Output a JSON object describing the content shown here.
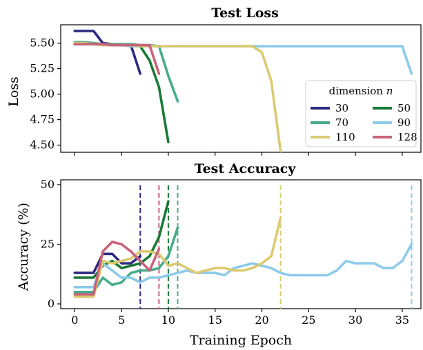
{
  "colors": {
    "30": "#2e2a80",
    "50": "#187a35",
    "70": "#48ab8c",
    "90": "#8ccbea",
    "110": "#dcca72",
    "128": "#c9627a"
  },
  "chart_data": [
    {
      "type": "line",
      "title": "Test Loss",
      "xlabel": "",
      "ylabel": "Loss",
      "xlim": [
        -1.5,
        37
      ],
      "ylim": [
        4.43,
        5.68
      ],
      "xticks": [
        0,
        5,
        10,
        15,
        20,
        25,
        30,
        35
      ],
      "yticks": [
        4.5,
        4.75,
        5.0,
        5.25,
        5.5
      ],
      "ytick_labels": [
        "4.50",
        "4.75",
        "5.00",
        "5.25",
        "5.50"
      ],
      "show_xtick_labels": false,
      "legend": {
        "title_prefix": "dimension ",
        "title_var": "n",
        "placement": "lower-right",
        "entries": [
          "30",
          "50",
          "70",
          "90",
          "110",
          "128"
        ]
      },
      "series": [
        {
          "name": "30",
          "x": [
            0,
            1,
            2,
            3,
            4,
            5,
            6,
            7
          ],
          "y": [
            5.62,
            5.62,
            5.62,
            5.5,
            5.49,
            5.49,
            5.48,
            5.2
          ]
        },
        {
          "name": "50",
          "x": [
            0,
            1,
            2,
            3,
            4,
            5,
            6,
            7,
            8,
            9,
            10
          ],
          "y": [
            5.49,
            5.49,
            5.49,
            5.49,
            5.49,
            5.48,
            5.48,
            5.47,
            5.33,
            5.07,
            4.53
          ]
        },
        {
          "name": "70",
          "x": [
            0,
            1,
            2,
            3,
            4,
            5,
            6,
            7,
            8,
            9,
            10,
            11
          ],
          "y": [
            5.51,
            5.51,
            5.5,
            5.49,
            5.49,
            5.49,
            5.49,
            5.48,
            5.48,
            5.47,
            5.18,
            4.93
          ]
        },
        {
          "name": "90",
          "x": [
            0,
            1,
            2,
            3,
            4,
            5,
            6,
            7,
            8,
            9,
            10,
            11,
            12,
            13,
            14,
            15,
            16,
            17,
            18,
            19,
            20,
            21,
            22,
            23,
            24,
            25,
            26,
            27,
            28,
            29,
            30,
            31,
            32,
            33,
            34,
            35,
            36
          ],
          "y": [
            5.49,
            5.49,
            5.49,
            5.48,
            5.48,
            5.48,
            5.47,
            5.47,
            5.47,
            5.47,
            5.47,
            5.47,
            5.47,
            5.47,
            5.47,
            5.47,
            5.47,
            5.47,
            5.47,
            5.47,
            5.47,
            5.47,
            5.47,
            5.47,
            5.47,
            5.47,
            5.47,
            5.47,
            5.47,
            5.47,
            5.47,
            5.47,
            5.47,
            5.47,
            5.47,
            5.47,
            5.2
          ]
        },
        {
          "name": "110",
          "x": [
            0,
            1,
            2,
            3,
            4,
            5,
            6,
            7,
            8,
            9,
            10,
            11,
            12,
            13,
            14,
            15,
            16,
            17,
            18,
            19,
            20,
            21,
            22
          ],
          "y": [
            5.5,
            5.5,
            5.49,
            5.48,
            5.48,
            5.48,
            5.48,
            5.47,
            5.47,
            5.47,
            5.47,
            5.47,
            5.47,
            5.47,
            5.47,
            5.47,
            5.47,
            5.47,
            5.47,
            5.47,
            5.41,
            5.13,
            4.44
          ]
        },
        {
          "name": "128",
          "x": [
            0,
            1,
            2,
            3,
            4,
            5,
            6,
            7,
            8,
            9
          ],
          "y": [
            5.49,
            5.49,
            5.49,
            5.49,
            5.48,
            5.48,
            5.48,
            5.48,
            5.48,
            5.2
          ]
        }
      ]
    },
    {
      "type": "line",
      "title": "Test Accuracy",
      "xlabel": "Training Epoch",
      "ylabel": "Accuracy (%)",
      "xlim": [
        -1.5,
        37
      ],
      "ylim": [
        -2,
        52
      ],
      "xticks": [
        0,
        5,
        10,
        15,
        20,
        25,
        30,
        35
      ],
      "yticks": [
        0,
        25,
        50
      ],
      "ytick_labels": [
        "0",
        "25",
        "50"
      ],
      "show_xtick_labels": true,
      "vlines": [
        {
          "name": "30",
          "x": 7
        },
        {
          "name": "50",
          "x": 10
        },
        {
          "name": "70",
          "x": 11
        },
        {
          "name": "90",
          "x": 36
        },
        {
          "name": "110",
          "x": 22
        },
        {
          "name": "128",
          "x": 9
        }
      ],
      "series": [
        {
          "name": "30",
          "x": [
            0,
            1,
            2,
            3,
            4,
            5,
            6,
            7
          ],
          "y": [
            13,
            13,
            13,
            21,
            21,
            17,
            17,
            20
          ]
        },
        {
          "name": "50",
          "x": [
            0,
            1,
            2,
            3,
            4,
            5,
            6,
            7,
            8,
            9,
            10
          ],
          "y": [
            11,
            11,
            11,
            16,
            18,
            15,
            16,
            17,
            20,
            28,
            43
          ]
        },
        {
          "name": "70",
          "x": [
            0,
            1,
            2,
            3,
            4,
            5,
            6,
            7,
            8,
            9,
            10,
            11
          ],
          "y": [
            5,
            5,
            5,
            11,
            8,
            9,
            13,
            14,
            14,
            15,
            20,
            32
          ]
        },
        {
          "name": "90",
          "x": [
            0,
            1,
            2,
            3,
            4,
            5,
            6,
            7,
            8,
            9,
            10,
            11,
            12,
            13,
            14,
            15,
            16,
            17,
            18,
            19,
            20,
            21,
            22,
            23,
            24,
            25,
            26,
            27,
            28,
            29,
            30,
            31,
            32,
            33,
            34,
            35,
            36
          ],
          "y": [
            7,
            7,
            7,
            17,
            14,
            11,
            11,
            9,
            11,
            11,
            12,
            13,
            14,
            13,
            13,
            13,
            12,
            15,
            16,
            17,
            16,
            15,
            13,
            12,
            12,
            12,
            12,
            12,
            14,
            18,
            17,
            17,
            17,
            15,
            15,
            18,
            25
          ]
        },
        {
          "name": "110",
          "x": [
            0,
            1,
            2,
            3,
            4,
            5,
            6,
            7,
            8,
            9,
            10,
            11,
            12,
            13,
            14,
            15,
            16,
            17,
            18,
            19,
            20,
            21,
            22
          ],
          "y": [
            3,
            3,
            3,
            18,
            17,
            18,
            19,
            22,
            22,
            21,
            16,
            17,
            15,
            13,
            14,
            15,
            15,
            14,
            14,
            15,
            17,
            20,
            36
          ]
        },
        {
          "name": "128",
          "x": [
            0,
            1,
            2,
            3,
            4,
            5,
            6,
            7,
            8,
            9
          ],
          "y": [
            4,
            4,
            4,
            22,
            26,
            25,
            22,
            18,
            14,
            23
          ]
        }
      ]
    }
  ]
}
